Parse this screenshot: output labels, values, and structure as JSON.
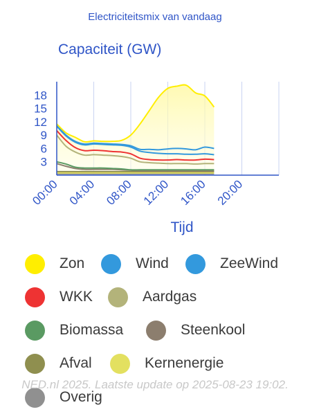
{
  "header": {
    "title": "Electriciteitsmix van vandaag"
  },
  "colors": {
    "axis": "#2f55c7",
    "grid": "#c9d3f2",
    "label": "#2f55c7"
  },
  "chart_data": {
    "type": "line",
    "title": "Capaciteit (GW)",
    "xlabel": "Tijd",
    "ylabel": "",
    "x_ticks": [
      "00:00",
      "04:00",
      "08:00",
      "12:00",
      "16:00",
      "20:00"
    ],
    "x_range": [
      "00:00",
      "24:00"
    ],
    "y_ticks": [
      3,
      6,
      9,
      12,
      15,
      18
    ],
    "ylim": [
      0,
      21
    ],
    "grid": true,
    "legend_position": "bottom",
    "x": [
      "00:00",
      "01:00",
      "02:00",
      "03:00",
      "04:00",
      "05:00",
      "06:00",
      "07:00",
      "08:00",
      "09:00",
      "10:00",
      "11:00",
      "12:00",
      "13:00",
      "14:00",
      "15:00",
      "16:00",
      "17:00"
    ],
    "series": [
      {
        "name": "Zon",
        "color": "#ffee00",
        "fill": true,
        "values": [
          11.5,
          9.5,
          8.5,
          7.5,
          7.7,
          7.6,
          7.6,
          7.8,
          9.0,
          11.5,
          14.5,
          17.5,
          19.5,
          20.0,
          20.2,
          18.5,
          17.8,
          15.3
        ]
      },
      {
        "name": "Wind",
        "color": "#3399dd",
        "fill": false,
        "values": [
          11.2,
          9.0,
          7.6,
          7.0,
          7.2,
          7.1,
          7.0,
          6.9,
          6.6,
          5.8,
          5.8,
          5.7,
          5.9,
          6.0,
          5.9,
          5.7,
          6.3,
          6.0
        ]
      },
      {
        "name": "ZeeWind",
        "color": "#3399dd",
        "fill": false,
        "values": [
          11.0,
          8.8,
          7.4,
          6.8,
          7.0,
          6.9,
          6.8,
          6.7,
          6.3,
          5.4,
          5.1,
          4.9,
          4.8,
          4.8,
          4.7,
          4.7,
          4.8,
          4.6
        ]
      },
      {
        "name": "WKK",
        "color": "#ee3333",
        "fill": false,
        "values": [
          10.0,
          7.8,
          6.2,
          5.5,
          5.6,
          5.5,
          5.3,
          5.2,
          4.8,
          3.8,
          3.5,
          3.4,
          3.4,
          3.5,
          3.4,
          3.4,
          3.6,
          3.5
        ]
      },
      {
        "name": "Aardgas",
        "color": "#b3b37a",
        "fill": false,
        "values": [
          9.0,
          6.5,
          5.2,
          4.5,
          4.6,
          4.5,
          4.4,
          4.2,
          3.8,
          3.0,
          2.8,
          2.7,
          2.6,
          2.6,
          2.6,
          2.5,
          2.6,
          2.6
        ]
      },
      {
        "name": "Biomassa",
        "color": "#5a9a62",
        "fill": false,
        "values": [
          3.0,
          2.5,
          1.8,
          1.6,
          1.6,
          1.6,
          1.5,
          1.4,
          1.2,
          1.2,
          1.2,
          1.2,
          1.2,
          1.2,
          1.2,
          1.2,
          1.2,
          1.2
        ]
      },
      {
        "name": "Steenkool",
        "color": "#8c7e6e",
        "fill": false,
        "values": [
          2.6,
          2.0,
          1.5,
          1.3,
          1.3,
          1.3,
          1.3,
          1.2,
          1.1,
          1.0,
          1.0,
          1.0,
          1.0,
          1.0,
          1.0,
          1.0,
          1.0,
          1.0
        ]
      },
      {
        "name": "Afval",
        "color": "#8f8f4f",
        "fill": false,
        "values": [
          0.8,
          0.8,
          0.8,
          0.8,
          0.8,
          0.8,
          0.8,
          0.8,
          0.8,
          0.8,
          0.8,
          0.8,
          0.8,
          0.8,
          0.8,
          0.8,
          0.8,
          0.8
        ]
      },
      {
        "name": "Kernenergie",
        "color": "#e3e060",
        "fill": false,
        "values": [
          0.5,
          0.5,
          0.5,
          0.5,
          0.5,
          0.5,
          0.5,
          0.5,
          0.5,
          0.5,
          0.5,
          0.5,
          0.5,
          0.5,
          0.5,
          0.5,
          0.5,
          0.5
        ]
      },
      {
        "name": "Overig",
        "color": "#909090",
        "fill": false,
        "values": [
          0.3,
          0.3,
          0.3,
          0.3,
          0.3,
          0.3,
          0.3,
          0.3,
          0.3,
          0.3,
          0.3,
          0.3,
          0.3,
          0.3,
          0.3,
          0.3,
          0.3,
          0.3
        ]
      }
    ]
  },
  "legend": {
    "items": [
      {
        "label": "Zon",
        "color": "#ffee00"
      },
      {
        "label": "Wind",
        "color": "#3399dd"
      },
      {
        "label": "ZeeWind",
        "color": "#3399dd"
      },
      {
        "label": "WKK",
        "color": "#ee3333"
      },
      {
        "label": "Aardgas",
        "color": "#b3b37a"
      },
      {
        "label": "Biomassa",
        "color": "#5a9a62"
      },
      {
        "label": "Steenkool",
        "color": "#8c7e6e"
      },
      {
        "label": "Afval",
        "color": "#8f8f4f"
      },
      {
        "label": "Kernenergie",
        "color": "#e3e060"
      },
      {
        "label": "Overig",
        "color": "#909090"
      }
    ]
  },
  "footer": {
    "note": "NED.nl 2025. Laatste update op 2025-08-23 19:02."
  }
}
